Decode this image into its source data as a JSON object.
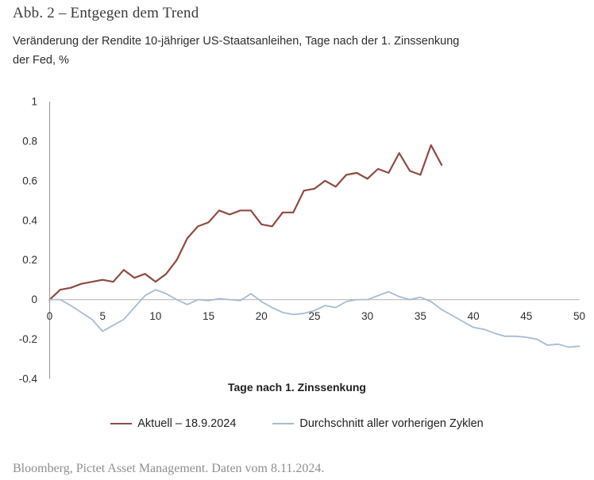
{
  "header": {
    "title": "Abb. 2 – Entgegen dem Trend",
    "subtitle_line1": "Veränderung der Rendite 10-jähriger US-Staatsanleihen, Tage nach der 1. Zinssenkung",
    "subtitle_line2": "der Fed, %"
  },
  "footer": {
    "source": "Bloomberg, Pictet Asset Management. Daten vom 8.11.2024."
  },
  "chart_data": {
    "type": "line",
    "title": "Abb. 2 – Entgegen dem Trend",
    "subtitle": "Veränderung der Rendite 10-jähriger US-Staatsanleihen, Tage nach der 1. Zinssenkung der Fed, %",
    "xlabel": "Tage nach 1. Zinssenkung",
    "ylabel": "",
    "xlim": [
      0,
      50
    ],
    "ylim": [
      -0.4,
      1
    ],
    "xticks": [
      "0",
      "5",
      "10",
      "15",
      "20",
      "25",
      "30",
      "35",
      "40",
      "45",
      "50"
    ],
    "xtick_values": [
      0,
      5,
      10,
      15,
      20,
      25,
      30,
      35,
      40,
      45,
      50
    ],
    "yticks": [
      "1",
      "0.8",
      "0.6",
      "0.4",
      "0.2",
      "0",
      "-0.2",
      "-0.4"
    ],
    "ytick_values": [
      1,
      0.8,
      0.6,
      0.4,
      0.2,
      0,
      -0.2,
      -0.4
    ],
    "grid": "horizontal zero line only",
    "legend_position": "bottom-center",
    "axis_color": "#a0a0a0",
    "zero_line_color": "#c3c3c3",
    "x_step": 1,
    "series": [
      {
        "name": "Aktuell – 18.9.2024",
        "color": "#8f4b42",
        "stroke_width": 2.2,
        "values": [
          0,
          0.05,
          0.06,
          0.08,
          0.09,
          0.1,
          0.09,
          0.15,
          0.11,
          0.13,
          0.09,
          0.13,
          0.2,
          0.31,
          0.37,
          0.39,
          0.45,
          0.43,
          0.45,
          0.45,
          0.38,
          0.37,
          0.44,
          0.44,
          0.55,
          0.56,
          0.6,
          0.57,
          0.63,
          0.64,
          0.61,
          0.66,
          0.64,
          0.74,
          0.65,
          0.63,
          0.78,
          0.68
        ]
      },
      {
        "name": "Durchschnitt aller vorherigen Zyklen",
        "color": "#a8bcd2",
        "stroke_width": 1.8,
        "values": [
          0,
          0,
          -0.03,
          -0.065,
          -0.1,
          -0.16,
          -0.13,
          -0.1,
          -0.04,
          0.02,
          0.05,
          0.03,
          0,
          -0.025,
          0,
          -0.005,
          0.005,
          0,
          -0.005,
          0.03,
          -0.01,
          -0.04,
          -0.065,
          -0.075,
          -0.07,
          -0.055,
          -0.03,
          -0.04,
          -0.01,
          0,
          0,
          0.02,
          0.04,
          0.015,
          0,
          0.012,
          -0.01,
          -0.05,
          -0.08,
          -0.11,
          -0.14,
          -0.15,
          -0.17,
          -0.185,
          -0.185,
          -0.19,
          -0.2,
          -0.23,
          -0.225,
          -0.24,
          -0.235
        ]
      }
    ]
  }
}
